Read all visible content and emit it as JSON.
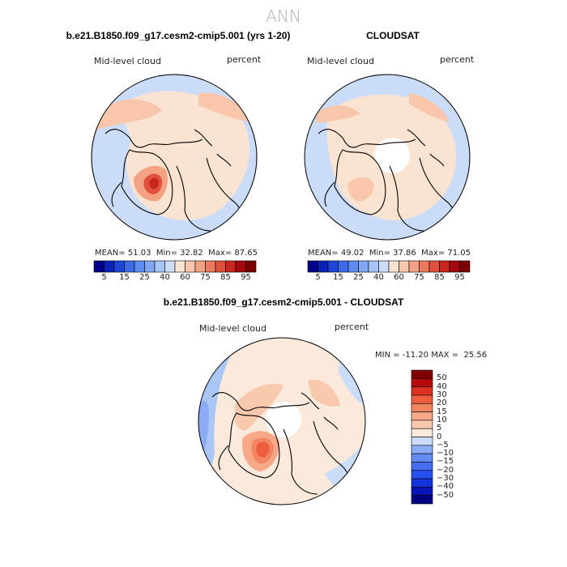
{
  "season": "ANN",
  "panels": [
    {
      "title": "b.e21.B1850.f09_g17.cesm2-cmip5.001 (yrs 1-20)",
      "variable": "Mid-level cloud",
      "units": "percent",
      "stats": {
        "mean_label": "MEAN=",
        "mean": "51.03",
        "min_label": "Min=",
        "min": "32.82",
        "max_label": "Max=",
        "max": "87.65"
      }
    },
    {
      "title": "CLOUDSAT",
      "variable": "Mid-level cloud",
      "units": "percent",
      "stats": {
        "mean_label": "MEAN=",
        "mean": "49.02",
        "min_label": "Min=",
        "min": "37.86",
        "max_label": "Max=",
        "max": "71.05"
      }
    },
    {
      "title": "b.e21.B1850.f09_g17.cesm2-cmip5.001 - CLOUDSAT",
      "variable": "Mid-level cloud",
      "units": "percent",
      "minmax_text": "MIN = -11.20 MAX =  25.56"
    }
  ],
  "chart_data": [
    {
      "type": "heatmap",
      "projection": "north polar stereographic",
      "title": "b.e21.B1850.f09_g17.cesm2-cmip5.001 (yrs 1-20)",
      "colorbar": {
        "levels": [
          5,
          10,
          15,
          20,
          25,
          30,
          40,
          50,
          60,
          70,
          75,
          80,
          85,
          90,
          95
        ],
        "tick_labels": [
          "5",
          "15",
          "25",
          "40",
          "60",
          "75",
          "85",
          "95"
        ],
        "colors": [
          "#00008b",
          "#0a22b4",
          "#1e46d8",
          "#3e6be8",
          "#5e8bf0",
          "#7fa7f3",
          "#a6c4f6",
          "#cbdcf8",
          "#fbe3d2",
          "#f8c6ab",
          "#f3a283",
          "#ec7a5c",
          "#e0503a",
          "#c8261c",
          "#a6070c",
          "#7a0000"
        ]
      },
      "stats": {
        "mean": 51.03,
        "min": 32.82,
        "max": 87.65
      },
      "regions": [
        {
          "area": "Arctic Ocean",
          "level": 60
        },
        {
          "area": "Northern Eurasia",
          "level": 60
        },
        {
          "area": "Greenland interior",
          "level": 85
        },
        {
          "area": "North Atlantic / North Pacific margins",
          "level": 50
        }
      ]
    },
    {
      "type": "heatmap",
      "projection": "north polar stereographic",
      "title": "CLOUDSAT",
      "colorbar": {
        "levels": [
          5,
          10,
          15,
          20,
          25,
          30,
          40,
          50,
          60,
          70,
          75,
          80,
          85,
          90,
          95
        ],
        "tick_labels": [
          "5",
          "15",
          "25",
          "40",
          "60",
          "75",
          "85",
          "95"
        ],
        "colors": [
          "#00008b",
          "#0a22b4",
          "#1e46d8",
          "#3e6be8",
          "#5e8bf0",
          "#7fa7f3",
          "#a6c4f6",
          "#cbdcf8",
          "#fbe3d2",
          "#f8c6ab",
          "#f3a283",
          "#ec7a5c",
          "#e0503a",
          "#c8261c",
          "#a6070c",
          "#7a0000"
        ]
      },
      "stats": {
        "mean": 49.02,
        "min": 37.86,
        "max": 71.05
      },
      "regions": [
        {
          "area": "North Pole (no data)",
          "level": null
        },
        {
          "area": "Northern Eurasia",
          "level": 60
        },
        {
          "area": "Greenland",
          "level": 60
        },
        {
          "area": "Polar cap ring",
          "level": 50
        }
      ]
    },
    {
      "type": "heatmap",
      "projection": "north polar stereographic",
      "title": "b.e21.B1850.f09_g17.cesm2-cmip5.001 - CLOUDSAT",
      "colorbar": {
        "levels": [
          -50,
          -40,
          -30,
          -20,
          -15,
          -10,
          -5,
          0,
          5,
          10,
          15,
          20,
          30,
          40,
          50
        ],
        "tick_labels": [
          "50",
          "40",
          "30",
          "20",
          "15",
          "10",
          "5",
          "0",
          "−5",
          "−10",
          "−15",
          "−20",
          "−30",
          "−40",
          "−50"
        ],
        "colors": [
          "#000080",
          "#0a14b4",
          "#1432dc",
          "#2850f0",
          "#466ef5",
          "#648cf5",
          "#8cacf6",
          "#cbdcf8",
          "#fbe9dc",
          "#f9c9ae",
          "#f6a888",
          "#f28663",
          "#ed5d3e",
          "#e0301e",
          "#b80a0a",
          "#800000"
        ]
      },
      "min": -11.2,
      "max": 25.56,
      "regions": [
        {
          "area": "North Pole (no data)",
          "level": null
        },
        {
          "area": "Greenland",
          "level": 20
        },
        {
          "area": "Arctic / Eurasia",
          "level": 5
        },
        {
          "area": "North Atlantic margin",
          "level": -10
        }
      ]
    }
  ]
}
